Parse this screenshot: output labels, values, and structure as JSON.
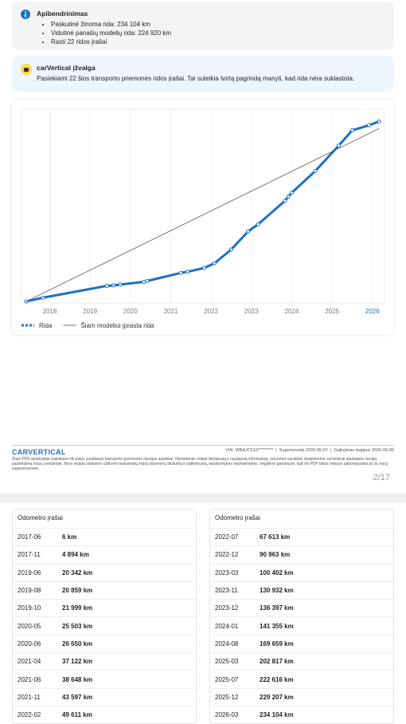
{
  "summary": {
    "title": "Apibendrinimas",
    "items": [
      "Paskutinė žinoma rida: 234 104 km",
      "Vidutinė panašių modelių rida: 224 920 km",
      "Rasti 22 ridos įrašai"
    ]
  },
  "insight": {
    "title": "carVertical įžvalga",
    "text": "Pasiekiami 22 šios transporto priemonės ridos įrašai. Tai suteikia tvirtą pagrindą manyti, kad rida nėra suklastota."
  },
  "chart_data": {
    "type": "line",
    "xlim": [
      2017.3,
      2026.3
    ],
    "xticks": [
      2018,
      2019,
      2020,
      2021,
      2022,
      2023,
      2024,
      2025,
      2026
    ],
    "ylim": [
      -2000,
      250000
    ],
    "grid": true,
    "legend": "bottom-left",
    "series": [
      {
        "name": "Rida",
        "color": "#1f6fc5",
        "x": [
          "2017-06",
          "2017-11",
          "2019-06",
          "2019-08",
          "2019-10",
          "2020-05",
          "2020-06",
          "2021-04",
          "2021-06",
          "2021-11",
          "2022-02",
          "2022-07",
          "2022-12",
          "2023-03",
          "2023-11",
          "2023-12",
          "2024-01",
          "2024-08",
          "2025-03",
          "2025-07",
          "2025-12",
          "2026-03"
        ],
        "values": [
          6,
          4894,
          20342,
          20859,
          21999,
          25503,
          26650,
          37122,
          38648,
          43597,
          49611,
          67613,
          90963,
          100402,
          130932,
          136397,
          141355,
          169659,
          202817,
          222616,
          229207,
          234104
        ]
      },
      {
        "name": "Šiam modeliui įprasta rida",
        "color": "#777777",
        "x": [
          "2017-06",
          "2026-03"
        ],
        "values": [
          0,
          224920
        ]
      }
    ]
  },
  "footer": {
    "logo": "CARVERTICAL",
    "vin": "VIN: WBAJC510*********",
    "generated": "Sugeneruota 2026-05-07",
    "expires": "Galiojimas baigiasi 2026-06-06",
    "disclaimer": "Šioje PDF ataskaitoje pateikiami tik patys svarbiausi transporto priemonės istorijos aspektai. Norėdamas matyti tiksliausią ir naujausią informaciją, visuomet naudokis skaitmenine carVertical ataskaitos versija, pasiekiama mūsų svetainėje. Nors visada siekiame užtikrinti maksimalų mūsų duomenų tikslumą ir patikimumą, atsakomybės neprisiimame, negalime garantuoti, kad šis PDF failas nebuvo pakoreguotas po to, kai jį sugeneravome.",
    "page": "2/17"
  },
  "tables": [
    {
      "title": "Odometro įrašai",
      "rows": [
        [
          "2017-06",
          "6 km"
        ],
        [
          "2017-11",
          "4 894 km"
        ],
        [
          "2019-06",
          "20 342 km"
        ],
        [
          "2019-08",
          "20 859 km"
        ],
        [
          "2019-10",
          "21 999 km"
        ],
        [
          "2020-05",
          "25 503 km"
        ],
        [
          "2020-06",
          "26 650 km"
        ],
        [
          "2021-04",
          "37 122 km"
        ],
        [
          "2021-06",
          "38 648 km"
        ],
        [
          "2021-11",
          "43 597 km"
        ],
        [
          "2022-02",
          "49 611 km"
        ]
      ]
    },
    {
      "title": "Odometro įrašai",
      "rows": [
        [
          "2022-07",
          "67 613 km"
        ],
        [
          "2022-12",
          "90 963 km"
        ],
        [
          "2023-03",
          "100 402 km"
        ],
        [
          "2023-11",
          "130 932 km"
        ],
        [
          "2023-12",
          "136 397 km"
        ],
        [
          "2024-01",
          "141 355 km"
        ],
        [
          "2024-08",
          "169 659 km"
        ],
        [
          "2025-03",
          "202 817 km"
        ],
        [
          "2025-07",
          "222 616 km"
        ],
        [
          "2025-12",
          "229 207 km"
        ],
        [
          "2026-03",
          "234 104 km"
        ]
      ]
    }
  ]
}
